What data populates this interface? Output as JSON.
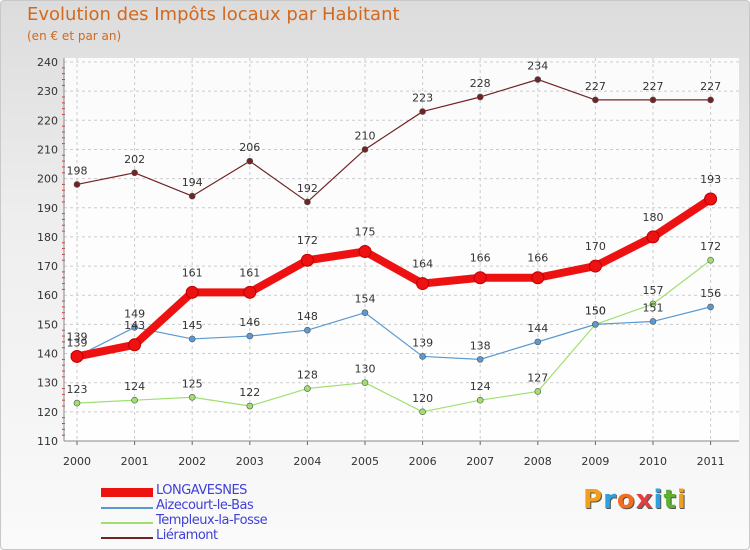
{
  "header": {
    "title": "Evolution des Impôts locaux par Habitant",
    "subtitle": "(en € et par an)"
  },
  "logo": {
    "letters": [
      "P",
      "r",
      "o",
      "x",
      "i",
      "t",
      "i"
    ],
    "colors": [
      "#f0a020",
      "#30a0e0",
      "#f07020",
      "#e04040",
      "#30a0e0",
      "#60b030",
      "#f0a020"
    ]
  },
  "chart_data": {
    "type": "line",
    "title": "Evolution des Impôts locaux par Habitant",
    "subtitle": "(en € et par an)",
    "xlabel": "",
    "ylabel": "",
    "ylim": [
      110,
      240
    ],
    "yticks": [
      110,
      120,
      130,
      140,
      150,
      160,
      170,
      180,
      190,
      200,
      210,
      220,
      230,
      240
    ],
    "grid": true,
    "legend_position": "bottom-left",
    "x": [
      "2000",
      "2001",
      "2002",
      "2003",
      "2004",
      "2005",
      "2006",
      "2007",
      "2008",
      "2009",
      "2010",
      "2011"
    ],
    "series": [
      {
        "name": "Liéramont",
        "color": "#722424",
        "thick": false,
        "values": [
          198,
          202,
          194,
          206,
          192,
          210,
          223,
          228,
          234,
          227,
          227,
          227
        ]
      },
      {
        "name": "Templeux-la-Fosse",
        "color": "#a0e070",
        "thick": false,
        "values": [
          123,
          124,
          125,
          122,
          128,
          130,
          120,
          124,
          127,
          150,
          157,
          172
        ]
      },
      {
        "name": "Aizecourt-le-Bas",
        "color": "#5a9ad0",
        "thick": false,
        "values": [
          139,
          149,
          145,
          146,
          148,
          154,
          139,
          138,
          144,
          150,
          151,
          156
        ]
      },
      {
        "name": "LONGAVESNES",
        "color": "#ee1111",
        "thick": true,
        "values": [
          139,
          143,
          161,
          161,
          172,
          175,
          164,
          166,
          166,
          170,
          180,
          193
        ]
      }
    ],
    "legend_order": [
      "LONGAVESNES",
      "Aizecourt-le-Bas",
      "Templeux-la-Fosse",
      "Liéramont"
    ]
  }
}
